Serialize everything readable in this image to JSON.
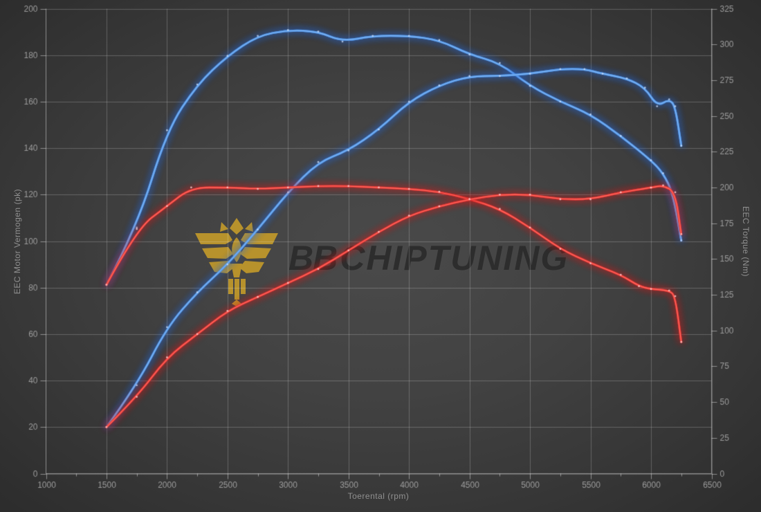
{
  "watermark": {
    "emblem_icon": "bb-phoenix-emblem",
    "text_bold": "BB",
    "text_rest": "CHIPTUNING",
    "gold_color": "#b7922c",
    "text_color": "#2b2b2b"
  },
  "axes": {
    "x": {
      "label": "Toerental (rpm)",
      "min": 1000,
      "max": 6500,
      "major": 500,
      "minor": 250
    },
    "y_left": {
      "label": "EEC Motor Vermogen (pk)",
      "min": 0,
      "max": 200,
      "major": 20
    },
    "y_right": {
      "label": "EEC Torque (Nm)",
      "min": 0,
      "max": 325,
      "major": 25
    }
  },
  "style": {
    "grid_color": "rgba(255,255,255,0.22)",
    "axis_color": "rgba(255,255,255,0.45)",
    "tick_label_color": "#9c9c9c",
    "tuned_color": "#4f94e8",
    "tuned_glow": "rgba(35,105,225,0.85)",
    "stock_color": "#e23232",
    "stock_glow": "rgba(215,25,25,0.85)",
    "marker_blue": "rgba(205,225,255,0.75)",
    "marker_red": "rgba(255,205,205,0.8)"
  },
  "chart_data": {
    "type": "line",
    "title": "",
    "xlabel": "Toerental (rpm)",
    "ylabel_left": "EEC Motor Vermogen (pk)",
    "ylabel_right": "EEC Torque (Nm)",
    "x_range": [
      1000,
      6500
    ],
    "y_left_range": [
      0,
      200
    ],
    "y_right_range": [
      0,
      325
    ],
    "grid": true,
    "legend": "none",
    "series": [
      {
        "name": "tuned-torque",
        "unit": "Nm",
        "axis": "right",
        "color_key": "tuned",
        "points": [
          [
            1500,
            132
          ],
          [
            1750,
            172
          ],
          [
            2000,
            240
          ],
          [
            2250,
            272
          ],
          [
            2500,
            292
          ],
          [
            2750,
            306
          ],
          [
            3000,
            310
          ],
          [
            3250,
            309
          ],
          [
            3450,
            302
          ],
          [
            3700,
            306
          ],
          [
            4000,
            306
          ],
          [
            4250,
            303
          ],
          [
            4500,
            293
          ],
          [
            4750,
            287
          ],
          [
            5000,
            271
          ],
          [
            5250,
            260
          ],
          [
            5500,
            251
          ],
          [
            5750,
            236
          ],
          [
            6000,
            219
          ],
          [
            6100,
            210
          ],
          [
            6180,
            196
          ],
          [
            6250,
            163
          ]
        ]
      },
      {
        "name": "tuned-power",
        "unit": "pk",
        "axis": "left",
        "color_key": "tuned",
        "points": [
          [
            1500,
            20
          ],
          [
            1750,
            38
          ],
          [
            2000,
            63
          ],
          [
            2250,
            78
          ],
          [
            2500,
            90
          ],
          [
            2750,
            105
          ],
          [
            3000,
            121
          ],
          [
            3250,
            134
          ],
          [
            3500,
            139
          ],
          [
            3750,
            148
          ],
          [
            4000,
            160
          ],
          [
            4250,
            167
          ],
          [
            4500,
            171
          ],
          [
            4750,
            171
          ],
          [
            5000,
            172
          ],
          [
            5250,
            174
          ],
          [
            5450,
            174
          ],
          [
            5600,
            172
          ],
          [
            5800,
            170
          ],
          [
            5950,
            166
          ],
          [
            6050,
            158
          ],
          [
            6150,
            161
          ],
          [
            6200,
            158
          ],
          [
            6250,
            141
          ]
        ]
      },
      {
        "name": "stock-torque",
        "unit": "Nm",
        "axis": "right",
        "color_key": "stock",
        "points": [
          [
            1500,
            132
          ],
          [
            1750,
            171
          ],
          [
            2000,
            187
          ],
          [
            2200,
            200
          ],
          [
            2500,
            200
          ],
          [
            2750,
            199
          ],
          [
            3000,
            200
          ],
          [
            3250,
            201
          ],
          [
            3500,
            201
          ],
          [
            3750,
            200
          ],
          [
            4000,
            199
          ],
          [
            4250,
            197
          ],
          [
            4500,
            192
          ],
          [
            4750,
            185
          ],
          [
            5000,
            172
          ],
          [
            5250,
            157
          ],
          [
            5500,
            147
          ],
          [
            5750,
            139
          ],
          [
            5900,
            131
          ],
          [
            6000,
            129
          ],
          [
            6150,
            128
          ],
          [
            6200,
            124
          ],
          [
            6250,
            92
          ]
        ]
      },
      {
        "name": "stock-power",
        "unit": "pk",
        "axis": "left",
        "color_key": "stock",
        "points": [
          [
            1500,
            20
          ],
          [
            1750,
            33
          ],
          [
            2000,
            50
          ],
          [
            2250,
            60
          ],
          [
            2500,
            70
          ],
          [
            2750,
            76
          ],
          [
            3000,
            82
          ],
          [
            3250,
            88
          ],
          [
            3500,
            96
          ],
          [
            3750,
            104
          ],
          [
            4000,
            111
          ],
          [
            4250,
            115
          ],
          [
            4500,
            118
          ],
          [
            4750,
            120
          ],
          [
            5000,
            120
          ],
          [
            5250,
            118
          ],
          [
            5500,
            118
          ],
          [
            5750,
            121
          ],
          [
            6000,
            123
          ],
          [
            6100,
            124
          ],
          [
            6200,
            121
          ],
          [
            6250,
            103
          ]
        ]
      }
    ]
  }
}
